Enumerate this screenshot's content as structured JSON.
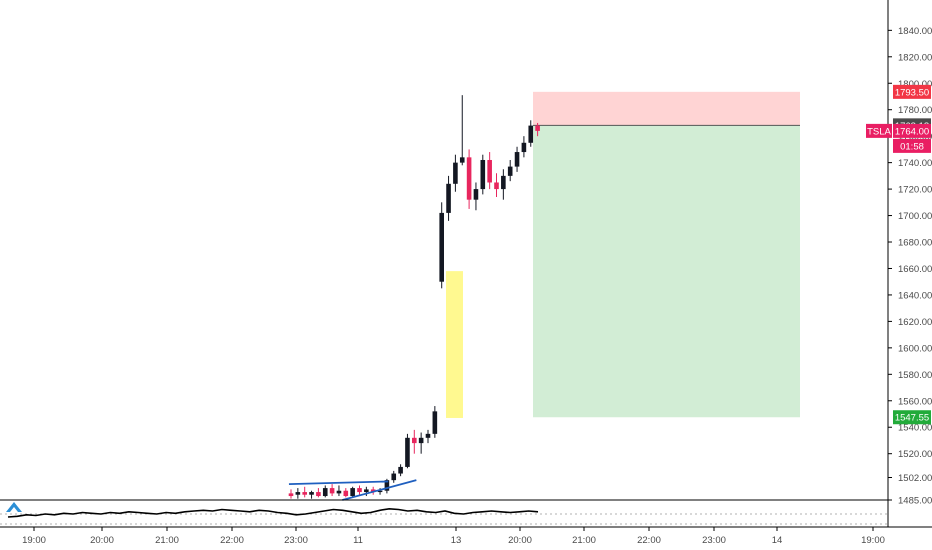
{
  "chart_data": {
    "type": "candlestick",
    "symbol": "TSLA",
    "countdown": "01:58",
    "y_axis": {
      "ticks": [
        1485,
        1502,
        1520,
        1540,
        1560,
        1580,
        1600,
        1620,
        1640,
        1660,
        1680,
        1700,
        1720,
        1740,
        1760,
        1780,
        1800,
        1820,
        1840
      ],
      "tick_labels": [
        "1485.00",
        "1502.00",
        "1520.00",
        "1540.00",
        "1560.00",
        "1580.00",
        "1600.00",
        "1620.00",
        "1640.00",
        "1660.00",
        "1680.00",
        "1700.00",
        "1720.00",
        "1740.00",
        "1760.00",
        "1780.00",
        "1800.00",
        "1820.00",
        "1840.00"
      ],
      "range": [
        1480,
        1858
      ]
    },
    "x_axis": {
      "tick_labels": [
        "19:00",
        "20:00",
        "21:00",
        "22:00",
        "23:00",
        "11",
        "13",
        "20:00",
        "21:00",
        "22:00",
        "23:00",
        "14",
        "19:00"
      ]
    },
    "price_tags": {
      "stop_loss": {
        "value": 1793.5,
        "label": "1793.50",
        "color": "#f23645"
      },
      "last_close": {
        "value": 1768.18,
        "label": "1768.18",
        "color": "#4a4a4a"
      },
      "current": {
        "value": 1764.0,
        "label": "1764.00",
        "color": "#e91e63"
      },
      "take_profit": {
        "value": 1547.55,
        "label": "1547.55",
        "color": "#22ab3a"
      }
    },
    "position": {
      "entry": 1768.18,
      "stop": 1793.5,
      "target": 1547.55,
      "risk_color": "#ffcccc",
      "reward_color": "#cdebd0"
    },
    "highlight_zone": {
      "from": 1547,
      "to": 1658,
      "color": "#fff990"
    },
    "candles": [
      {
        "o": 1490,
        "h": 1493,
        "l": 1486,
        "c": 1488
      },
      {
        "o": 1489,
        "h": 1494,
        "l": 1486,
        "c": 1491
      },
      {
        "o": 1491,
        "h": 1495,
        "l": 1487,
        "c": 1489
      },
      {
        "o": 1489,
        "h": 1492,
        "l": 1486,
        "c": 1491
      },
      {
        "o": 1491,
        "h": 1494,
        "l": 1487,
        "c": 1488
      },
      {
        "o": 1488,
        "h": 1496,
        "l": 1487,
        "c": 1494
      },
      {
        "o": 1494,
        "h": 1497,
        "l": 1488,
        "c": 1490
      },
      {
        "o": 1490,
        "h": 1496,
        "l": 1488,
        "c": 1492
      },
      {
        "o": 1492,
        "h": 1494,
        "l": 1487,
        "c": 1488
      },
      {
        "o": 1488,
        "h": 1495,
        "l": 1487,
        "c": 1494
      },
      {
        "o": 1494,
        "h": 1496,
        "l": 1489,
        "c": 1491
      },
      {
        "o": 1491,
        "h": 1495,
        "l": 1488,
        "c": 1493
      },
      {
        "o": 1493,
        "h": 1495,
        "l": 1489,
        "c": 1491
      },
      {
        "o": 1491,
        "h": 1494,
        "l": 1489,
        "c": 1492
      },
      {
        "o": 1492,
        "h": 1501,
        "l": 1490,
        "c": 1500
      },
      {
        "o": 1500,
        "h": 1507,
        "l": 1498,
        "c": 1505
      },
      {
        "o": 1505,
        "h": 1512,
        "l": 1503,
        "c": 1510
      },
      {
        "o": 1510,
        "h": 1535,
        "l": 1509,
        "c": 1532
      },
      {
        "o": 1532,
        "h": 1538,
        "l": 1520,
        "c": 1528
      },
      {
        "o": 1528,
        "h": 1536,
        "l": 1520,
        "c": 1532
      },
      {
        "o": 1532,
        "h": 1538,
        "l": 1528,
        "c": 1535
      },
      {
        "o": 1535,
        "h": 1556,
        "l": 1532,
        "c": 1552
      },
      {
        "o": 1650,
        "h": 1710,
        "l": 1645,
        "c": 1702
      },
      {
        "o": 1702,
        "h": 1730,
        "l": 1696,
        "c": 1724
      },
      {
        "o": 1724,
        "h": 1746,
        "l": 1718,
        "c": 1740
      },
      {
        "o": 1740,
        "h": 1791,
        "l": 1738,
        "c": 1744
      },
      {
        "o": 1744,
        "h": 1750,
        "l": 1705,
        "c": 1712
      },
      {
        "o": 1712,
        "h": 1725,
        "l": 1704,
        "c": 1720
      },
      {
        "o": 1720,
        "h": 1746,
        "l": 1716,
        "c": 1742
      },
      {
        "o": 1742,
        "h": 1748,
        "l": 1720,
        "c": 1725
      },
      {
        "o": 1725,
        "h": 1732,
        "l": 1714,
        "c": 1720
      },
      {
        "o": 1720,
        "h": 1735,
        "l": 1712,
        "c": 1730
      },
      {
        "o": 1730,
        "h": 1742,
        "l": 1726,
        "c": 1737
      },
      {
        "o": 1737,
        "h": 1752,
        "l": 1733,
        "c": 1748
      },
      {
        "o": 1748,
        "h": 1760,
        "l": 1744,
        "c": 1755
      },
      {
        "o": 1755,
        "h": 1772,
        "l": 1752,
        "c": 1768
      },
      {
        "o": 1768,
        "h": 1770,
        "l": 1760,
        "c": 1764
      }
    ],
    "trend_lines": [
      {
        "from_index": -0.3,
        "from_value": 1497,
        "to_index": 14.2,
        "to_value": 1499,
        "color": "#1f5fbf"
      },
      {
        "from_index": 7.5,
        "from_value": 1485,
        "to_index": 18.3,
        "to_value": 1500,
        "color": "#1f5fbf"
      }
    ],
    "indicator": {
      "color": "#000000",
      "values": [
        0,
        1,
        3,
        2,
        4,
        3,
        5,
        4,
        6,
        5,
        4,
        6,
        5,
        7,
        6,
        5,
        4,
        6,
        5,
        7,
        8,
        9,
        8,
        10,
        9,
        8,
        7,
        9,
        8,
        6,
        5,
        3,
        4,
        6,
        8,
        10,
        9,
        7,
        5,
        6,
        9,
        11,
        10,
        8,
        9,
        7,
        6,
        8,
        5,
        4,
        6,
        7,
        8,
        7,
        6,
        7,
        8,
        7
      ]
    }
  }
}
